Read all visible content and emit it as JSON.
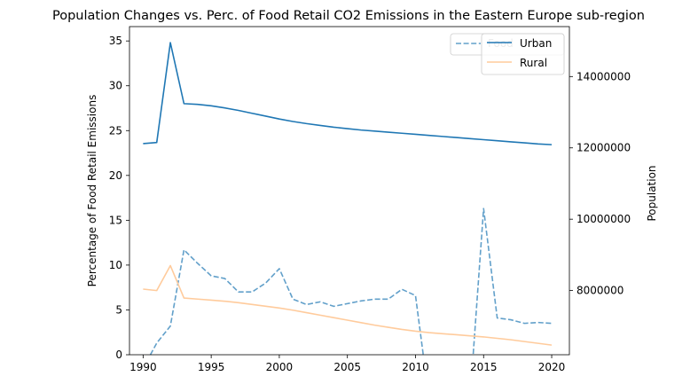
{
  "chart_data": {
    "type": "line",
    "title": "Population Changes vs. Perc. of Food Retail CO2 Emissions in the Eastern Europe sub-region",
    "xlabel": "",
    "ylabel_left": "Percentage of Food Retail Emissions",
    "ylabel_right": "Population",
    "x": [
      1990,
      1991,
      1992,
      1993,
      1994,
      1995,
      1996,
      1997,
      1998,
      1999,
      2000,
      2001,
      2002,
      2003,
      2004,
      2005,
      2006,
      2007,
      2008,
      2009,
      2010,
      2011,
      2012,
      2013,
      2014,
      2015,
      2016,
      2017,
      2018,
      2019,
      2020
    ],
    "xlim": [
      1989,
      2021.3
    ],
    "xticks": [
      "1990",
      "1995",
      "2000",
      "2005",
      "2010",
      "2015",
      "2020"
    ],
    "ylim_left": [
      0,
      36.6
    ],
    "yticks_left": [
      "0",
      "5",
      "10",
      "15",
      "20",
      "25",
      "30",
      "35"
    ],
    "ylim_right": [
      6200000,
      15400000
    ],
    "yticks_right": [
      "8000000",
      "10000000",
      "12000000",
      "14000000"
    ],
    "series": [
      {
        "name": "Food",
        "axis": "left",
        "color": "#1f77b4",
        "style": "dashed",
        "values": [
          -1.5,
          1.3,
          3.2,
          11.7,
          10.2,
          8.8,
          8.5,
          7.0,
          7.0,
          8.0,
          9.6,
          6.2,
          5.6,
          5.9,
          5.4,
          5.7,
          6.0,
          6.2,
          6.2,
          7.3,
          6.6,
          -5.0,
          null,
          null,
          -5.0,
          16.3,
          4.1,
          3.9,
          3.5,
          3.6,
          3.5
        ]
      },
      {
        "name": "Urban",
        "axis": "right",
        "color": "#1f77b4",
        "style": "solid",
        "values": [
          12120000,
          12150000,
          14950000,
          13240000,
          13220000,
          13180000,
          13120000,
          13050000,
          12970000,
          12890000,
          12810000,
          12740000,
          12680000,
          12630000,
          12580000,
          12540000,
          12500000,
          12470000,
          12440000,
          12410000,
          12380000,
          12350000,
          12320000,
          12290000,
          12260000,
          12230000,
          12200000,
          12170000,
          12140000,
          12110000,
          12090000
        ]
      },
      {
        "name": "Rural",
        "axis": "right",
        "color": "#ffcb9c",
        "style": "solid",
        "values": [
          8040000,
          8000000,
          8700000,
          7790000,
          7760000,
          7730000,
          7700000,
          7660000,
          7610000,
          7560000,
          7510000,
          7450000,
          7380000,
          7310000,
          7240000,
          7170000,
          7100000,
          7030000,
          6970000,
          6910000,
          6860000,
          6820000,
          6790000,
          6760000,
          6730000,
          6700000,
          6660000,
          6620000,
          6570000,
          6520000,
          6470000
        ]
      }
    ],
    "legend_back": {
      "labels": [
        "Food"
      ],
      "placement": "top-right"
    },
    "legend_front": {
      "labels": [
        "Urban",
        "Rural"
      ],
      "placement": "top-right"
    },
    "grid": false
  }
}
